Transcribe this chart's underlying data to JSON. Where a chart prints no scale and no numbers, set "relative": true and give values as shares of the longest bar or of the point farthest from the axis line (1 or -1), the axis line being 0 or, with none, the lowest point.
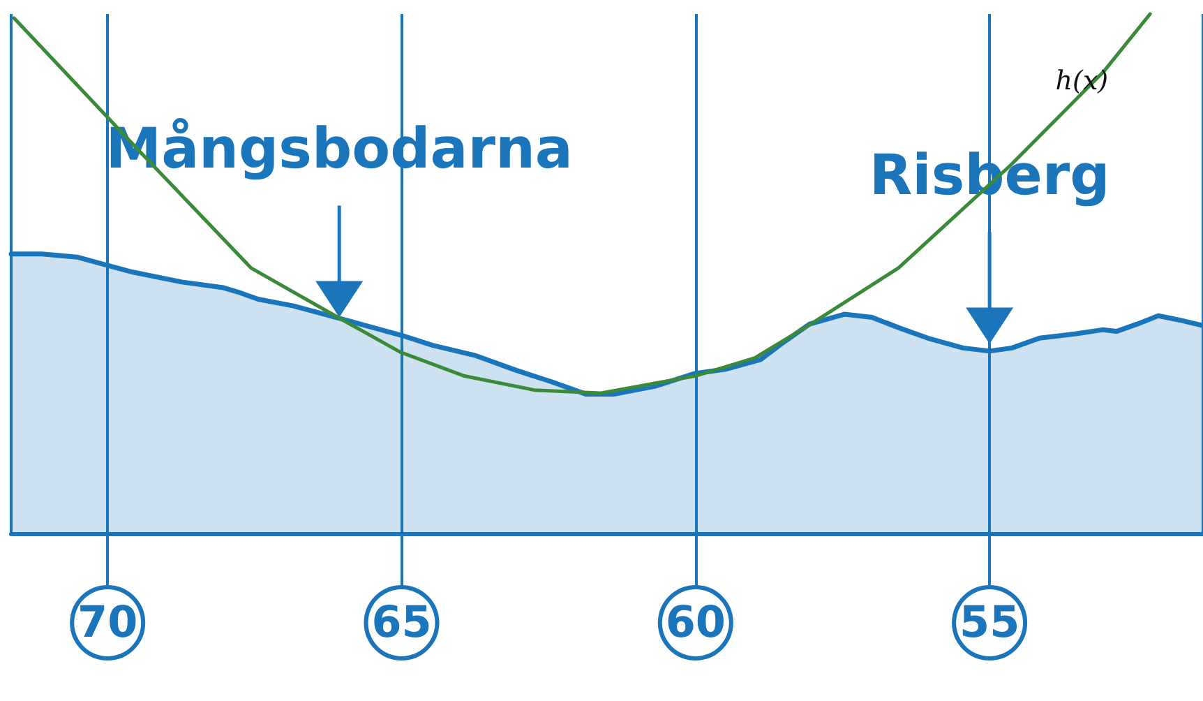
{
  "chart_data": {
    "type": "area",
    "relative": true,
    "xlim": [
      71.64,
      51.37
    ],
    "xticks": [
      70,
      65,
      60,
      55
    ],
    "grid": "x",
    "marker": "none",
    "series": [
      {
        "color": "#1b75bb",
        "x": [
          71.64,
          71.12,
          70.52,
          70,
          69.57,
          68.74,
          68.03,
          67.79,
          67.44,
          66.84,
          66.06,
          64.99,
          64.47,
          63.76,
          63.05,
          62.45,
          61.86,
          61.39,
          60.67,
          60.01,
          59.49,
          58.89,
          58.54,
          58.06,
          57.47,
          57.0,
          56.52,
          56.05,
          55.45,
          55.0,
          54.62,
          54.15,
          53.55,
          53.08,
          52.84,
          52.49,
          52.13,
          51.78,
          51.37
        ],
        "values": [
          0.538,
          0.538,
          0.532,
          0.516,
          0.503,
          0.484,
          0.473,
          0.465,
          0.451,
          0.438,
          0.414,
          0.381,
          0.362,
          0.343,
          0.314,
          0.292,
          0.268,
          0.268,
          0.284,
          0.308,
          0.316,
          0.335,
          0.365,
          0.403,
          0.422,
          0.416,
          0.395,
          0.376,
          0.357,
          0.351,
          0.357,
          0.376,
          0.384,
          0.392,
          0.389,
          0.403,
          0.419,
          0.411,
          0.4
        ]
      },
      {
        "type": "line",
        "name": "h(x)",
        "color": "#3a8a3a",
        "x": [
          71.59,
          69.45,
          67.56,
          66.13,
          65.02,
          63.93,
          62.74,
          61.62,
          60.01,
          58.99,
          58.04,
          56.55,
          54.65,
          53.06,
          52.27
        ],
        "values": [
          0.992,
          0.735,
          0.511,
          0.419,
          0.349,
          0.303,
          0.276,
          0.27,
          0.303,
          0.338,
          0.403,
          0.511,
          0.708,
          0.889,
          1.0
        ]
      }
    ],
    "annotations": [
      {
        "text": "Mångsbodarna",
        "x": 66.06,
        "y": 0.416
      },
      {
        "text": "Risberg",
        "x": 55.0,
        "y": 0.365
      }
    ]
  }
}
